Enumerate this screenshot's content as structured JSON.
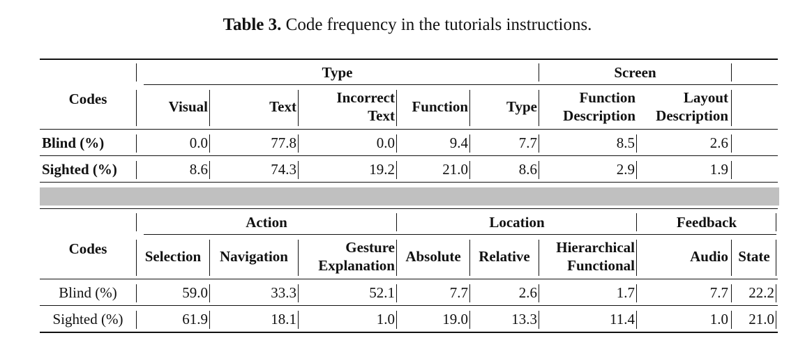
{
  "caption": {
    "label": "Table 3.",
    "text": "Code frequency in the tutorials instructions."
  },
  "top": {
    "codes_label": "Codes",
    "groups": {
      "type": "Type",
      "screen": "Screen"
    },
    "columns": [
      [
        "Visual"
      ],
      [
        "Text"
      ],
      [
        "Incorrect",
        "Text"
      ],
      [
        "Function"
      ],
      [
        "Type"
      ],
      [
        "Function",
        "Description"
      ],
      [
        "Layout",
        "Description"
      ]
    ],
    "rows": [
      {
        "label": "Blind (%)",
        "values": [
          "0.0",
          "77.8",
          "0.0",
          "9.4",
          "7.7",
          "8.5",
          "2.6"
        ]
      },
      {
        "label": "Sighted (%)",
        "values": [
          "8.6",
          "74.3",
          "19.2",
          "21.0",
          "8.6",
          "2.9",
          "1.9"
        ]
      }
    ]
  },
  "bottom": {
    "codes_label": "Codes",
    "groups": {
      "action": "Action",
      "location": "Location",
      "feedback": "Feedback"
    },
    "columns": [
      [
        "Selection"
      ],
      [
        "Navigation"
      ],
      [
        "Gesture",
        "Explanation"
      ],
      [
        "Absolute"
      ],
      [
        "Relative"
      ],
      [
        "Hierarchical",
        "Functional"
      ],
      [
        "Audio"
      ],
      [
        "State"
      ]
    ],
    "rows": [
      {
        "label": "Blind (%)",
        "values": [
          "59.0",
          "33.3",
          "52.1",
          "7.7",
          "2.6",
          "1.7",
          "7.7",
          "22.2"
        ]
      },
      {
        "label": "Sighted (%)",
        "values": [
          "61.9",
          "18.1",
          "1.0",
          "19.0",
          "13.3",
          "11.4",
          "1.0",
          "21.0"
        ]
      }
    ]
  }
}
